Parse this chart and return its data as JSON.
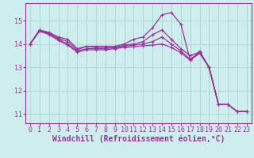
{
  "lines": [
    [
      14.0,
      14.6,
      14.5,
      14.3,
      14.2,
      13.8,
      13.9,
      13.9,
      13.9,
      13.9,
      14.0,
      14.2,
      14.3,
      14.7,
      15.25,
      15.35,
      14.85,
      13.3,
      13.7,
      13.0,
      11.4,
      11.4,
      11.1,
      11.1
    ],
    [
      14.0,
      14.6,
      14.45,
      14.25,
      14.1,
      13.75,
      13.9,
      13.85,
      13.85,
      13.85,
      13.95,
      14.0,
      14.1,
      14.4,
      14.6,
      14.2,
      13.8,
      13.5,
      13.65,
      13.0,
      11.4,
      11.4,
      11.1,
      11.1
    ],
    [
      14.0,
      14.55,
      14.45,
      14.2,
      14.0,
      13.7,
      13.8,
      13.8,
      13.8,
      13.85,
      13.9,
      13.95,
      14.0,
      14.1,
      14.3,
      14.0,
      13.7,
      13.35,
      13.62,
      13.0,
      11.4,
      11.4,
      11.1,
      11.1
    ],
    [
      14.0,
      14.55,
      14.4,
      14.15,
      13.95,
      13.65,
      13.75,
      13.75,
      13.75,
      13.8,
      13.85,
      13.88,
      13.92,
      13.95,
      14.0,
      13.85,
      13.62,
      13.3,
      13.6,
      13.0,
      11.4,
      11.4,
      11.1,
      11.1
    ]
  ],
  "x": [
    0,
    1,
    2,
    3,
    4,
    5,
    6,
    7,
    8,
    9,
    10,
    11,
    12,
    13,
    14,
    15,
    16,
    17,
    18,
    19,
    20,
    21,
    22,
    23
  ],
  "line_color": "#993399",
  "marker": "+",
  "bg_color": "#ceeeed",
  "grid_color": "#aad4d3",
  "xlabel": "Windchill (Refroidissement éolien,°C)",
  "xlim_min": -0.5,
  "xlim_max": 23.5,
  "ylim_min": 10.6,
  "ylim_max": 15.75,
  "yticks": [
    11,
    12,
    13,
    14,
    15
  ],
  "xticks": [
    0,
    1,
    2,
    3,
    4,
    5,
    6,
    7,
    8,
    9,
    10,
    11,
    12,
    13,
    14,
    15,
    16,
    17,
    18,
    19,
    20,
    21,
    22,
    23
  ],
  "font_color": "#993399",
  "font_size": 6.0,
  "xlabel_fontsize": 7.0,
  "marker_size": 3,
  "line_width": 0.9
}
